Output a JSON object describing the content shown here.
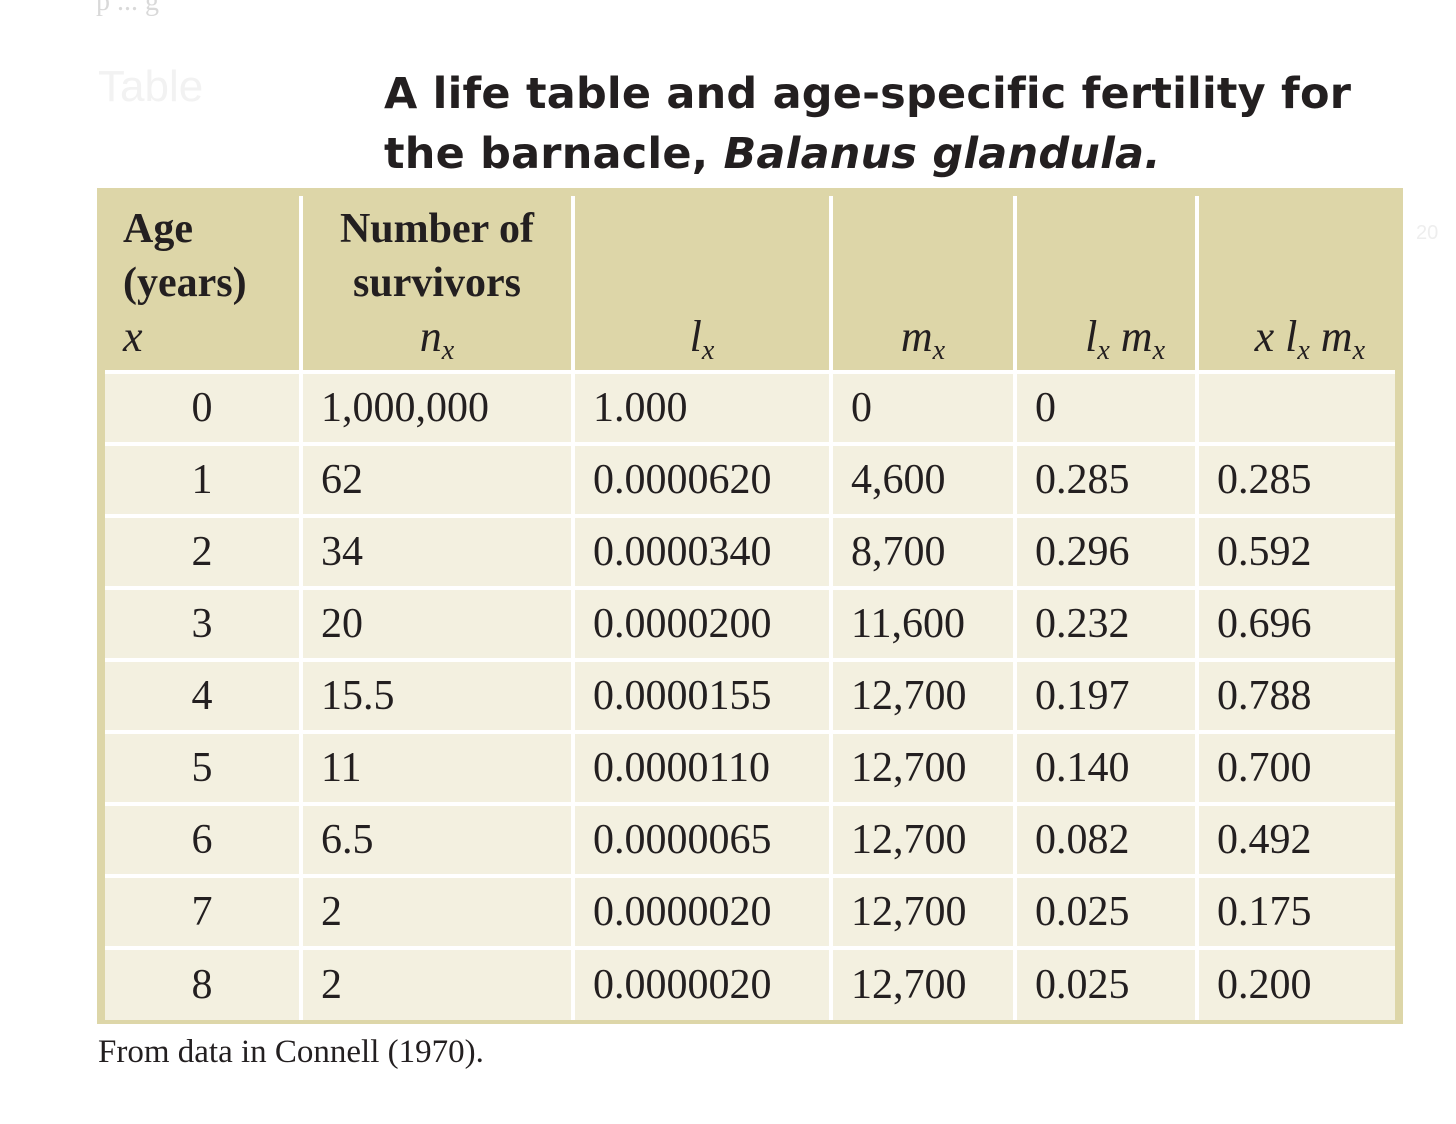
{
  "caption": {
    "title": "A life table and age-specific fertility for the barnacle,",
    "species": "Balanus glandula."
  },
  "table": {
    "headers": {
      "age_line1": "Age",
      "age_line2": "(years)",
      "age_var": "x",
      "survivors_line1": "Number of",
      "survivors_line2": "survivors",
      "survivors_var": "n",
      "survivors_sub": "x",
      "lx_var": "l",
      "lx_sub": "x",
      "mx_var": "m",
      "mx_sub": "x",
      "lxmx_l": "l",
      "lxmx_lsub": "x",
      "lxmx_m": "m",
      "lxmx_msub": "x",
      "xlxmx_x": "x",
      "xlxmx_l": "l",
      "xlxmx_lsub": "x",
      "xlxmx_m": "m",
      "xlxmx_msub": "x"
    },
    "rows": [
      {
        "x": "0",
        "nx": "1,000,000",
        "lx": "1.000",
        "mx": "0",
        "lxmx": "0",
        "xlxmx": ""
      },
      {
        "x": "1",
        "nx": "62",
        "lx": "0.0000620",
        "mx": "4,600",
        "lxmx": "0.285",
        "xlxmx": "0.285"
      },
      {
        "x": "2",
        "nx": "34",
        "lx": "0.0000340",
        "mx": "8,700",
        "lxmx": "0.296",
        "xlxmx": "0.592"
      },
      {
        "x": "3",
        "nx": "20",
        "lx": "0.0000200",
        "mx": "11,600",
        "lxmx": "0.232",
        "xlxmx": "0.696"
      },
      {
        "x": "4",
        "nx": "15.5",
        "lx": "0.0000155",
        "mx": "12,700",
        "lxmx": "0.197",
        "xlxmx": "0.788"
      },
      {
        "x": "5",
        "nx": "11",
        "lx": "0.0000110",
        "mx": "12,700",
        "lxmx": "0.140",
        "xlxmx": "0.700"
      },
      {
        "x": "6",
        "nx": "6.5",
        "lx": "0.0000065",
        "mx": "12,700",
        "lxmx": "0.082",
        "xlxmx": "0.492"
      },
      {
        "x": "7",
        "nx": "2",
        "lx": "0.0000020",
        "mx": "12,700",
        "lxmx": "0.025",
        "xlxmx": "0.175"
      },
      {
        "x": "8",
        "nx": "2",
        "lx": "0.0000020",
        "mx": "12,700",
        "lxmx": "0.025",
        "xlxmx": "0.200"
      }
    ]
  },
  "footnote": "From data in Connell (1970)."
}
